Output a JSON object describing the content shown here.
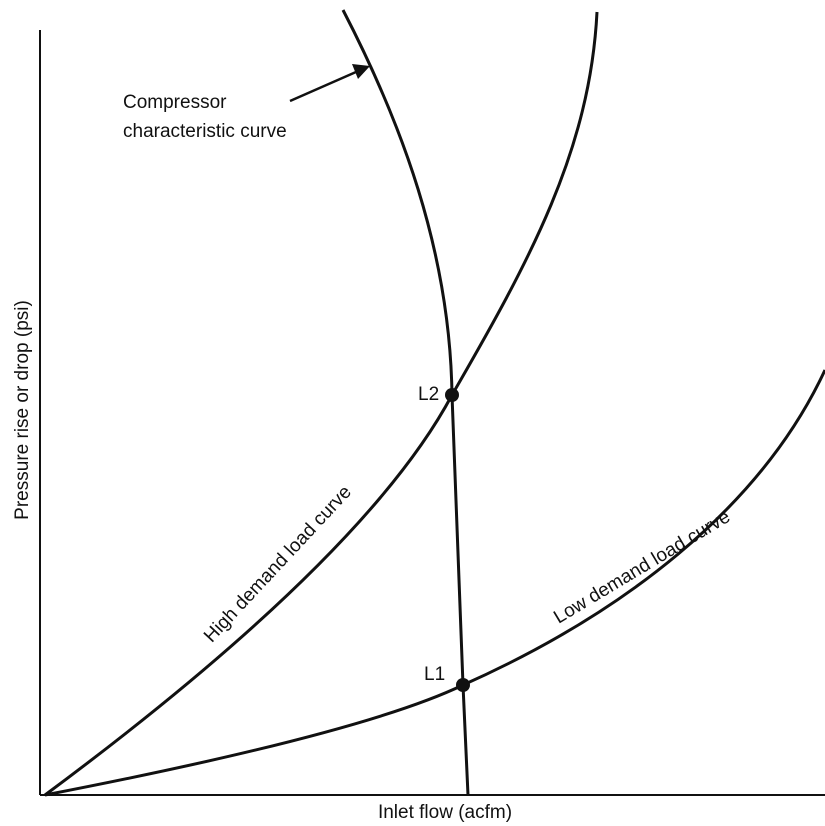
{
  "annotation": {
    "lines": [
      "Compressor",
      "characteristic curve"
    ]
  },
  "axes": {
    "x_label": "Inlet flow (acfm)",
    "y_label": "Pressure rise or drop (psi)"
  },
  "curves": {
    "high_demand": "High demand load curve",
    "low_demand": "Low demand load curve"
  },
  "points": {
    "l2": "L2",
    "l1": "L1"
  }
}
